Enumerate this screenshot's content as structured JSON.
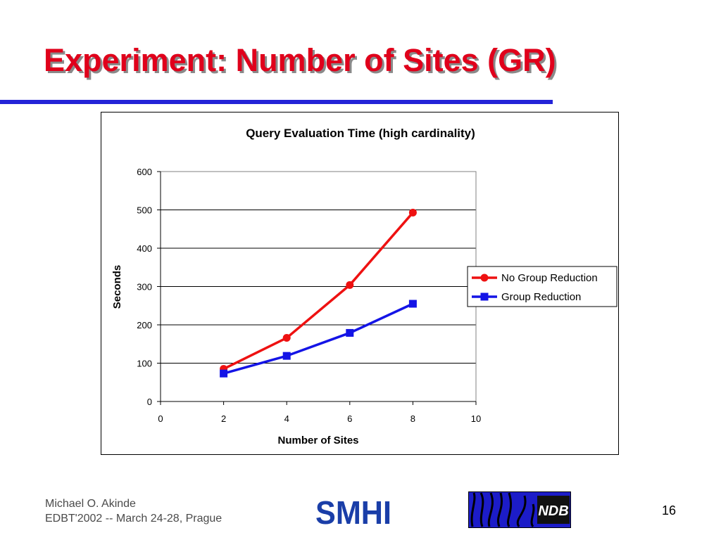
{
  "slide": {
    "title": "Experiment: Number of Sites (GR)",
    "footer": {
      "author": "Michael O. Akinde",
      "event": "EDBT'2002 -- March 24-28, Prague"
    },
    "page_number": "16",
    "logos": {
      "smhi": "SMHI",
      "ndb": "NDB"
    }
  },
  "colors": {
    "title": "#e0001b",
    "rule": "#2424d8",
    "series_no_gr": "#ee1111",
    "series_gr": "#1414e6"
  },
  "chart_data": {
    "type": "line",
    "title": "Query Evaluation Time (high cardinality)",
    "xlabel": "Number of Sites",
    "ylabel": "Seconds",
    "xlim": [
      0,
      10
    ],
    "ylim": [
      0,
      600
    ],
    "xticks": [
      0,
      2,
      4,
      6,
      8,
      10
    ],
    "yticks": [
      0,
      100,
      200,
      300,
      400,
      500,
      600
    ],
    "grid": true,
    "legend_position": "right",
    "series": [
      {
        "name": "No Group Reduction",
        "marker": "circle",
        "x": [
          2,
          4,
          6,
          8
        ],
        "y": [
          85,
          166,
          304,
          493
        ]
      },
      {
        "name": "Group Reduction",
        "marker": "square",
        "x": [
          2,
          4,
          6,
          8
        ],
        "y": [
          73,
          119,
          179,
          255
        ]
      }
    ]
  }
}
